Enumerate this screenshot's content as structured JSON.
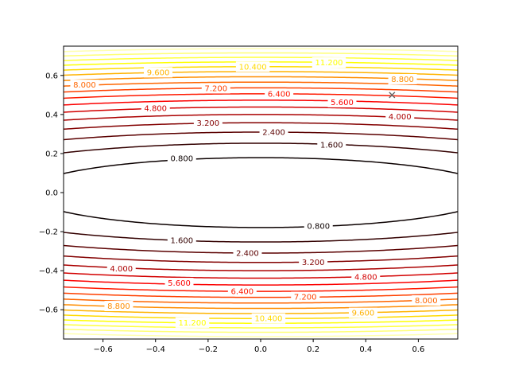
{
  "chart_data": {
    "type": "contour",
    "title": "",
    "xlabel": "",
    "ylabel": "",
    "xlim": [
      -0.75,
      0.75
    ],
    "ylim": [
      -0.75,
      0.75
    ],
    "x_ticks": [
      -0.6,
      -0.4,
      -0.2,
      0.0,
      0.2,
      0.4,
      0.6
    ],
    "x_tick_labels": [
      "−0.6",
      "−0.4",
      "−0.2",
      "0.0",
      "0.2",
      "0.4",
      "0.6"
    ],
    "y_ticks": [
      -0.6,
      -0.4,
      -0.2,
      0.0,
      0.2,
      0.4,
      0.6
    ],
    "y_tick_labels": [
      "−0.6",
      "−0.4",
      "−0.2",
      "0.0",
      "0.2",
      "0.4",
      "0.6"
    ],
    "grid": false,
    "colormap": "hot (dark red for low levels, pale yellow for high levels)",
    "surface": "f(x, y) = x^2 + 25*y^2",
    "levels": [
      0.8,
      1.6,
      2.4,
      3.2,
      4.0,
      4.8,
      5.6,
      6.4,
      7.2,
      8.0,
      8.8,
      9.6,
      10.4,
      11.2,
      12.0,
      12.8,
      13.6
    ],
    "labels": [
      {
        "text": "0.800",
        "level": 0.8,
        "x": -0.3,
        "y": 0.175
      },
      {
        "text": "0.800",
        "level": 0.8,
        "x": 0.22,
        "y": -0.172
      },
      {
        "text": "1.600",
        "level": 1.6,
        "x": 0.27,
        "y": 0.245
      },
      {
        "text": "1.600",
        "level": 1.6,
        "x": -0.3,
        "y": -0.245
      },
      {
        "text": "2.400",
        "level": 2.4,
        "x": 0.05,
        "y": 0.31
      },
      {
        "text": "2.400",
        "level": 2.4,
        "x": -0.05,
        "y": -0.31
      },
      {
        "text": "3.200",
        "level": 3.2,
        "x": -0.2,
        "y": 0.357
      },
      {
        "text": "3.200",
        "level": 3.2,
        "x": 0.2,
        "y": -0.357
      },
      {
        "text": "4.000",
        "level": 4.0,
        "x": 0.53,
        "y": 0.39
      },
      {
        "text": "4.000",
        "level": 4.0,
        "x": -0.53,
        "y": -0.39
      },
      {
        "text": "4.800",
        "level": 4.8,
        "x": -0.4,
        "y": 0.432
      },
      {
        "text": "4.800",
        "level": 4.8,
        "x": 0.4,
        "y": -0.432
      },
      {
        "text": "5.600",
        "level": 5.6,
        "x": 0.31,
        "y": 0.463
      },
      {
        "text": "5.600",
        "level": 5.6,
        "x": -0.31,
        "y": -0.463
      },
      {
        "text": "6.400",
        "level": 6.4,
        "x": 0.07,
        "y": 0.505
      },
      {
        "text": "6.400",
        "level": 6.4,
        "x": -0.07,
        "y": -0.505
      },
      {
        "text": "7.200",
        "level": 7.2,
        "x": -0.17,
        "y": 0.534
      },
      {
        "text": "7.200",
        "level": 7.2,
        "x": 0.17,
        "y": -0.534
      },
      {
        "text": "8.000",
        "level": 8.0,
        "x": -0.67,
        "y": 0.552
      },
      {
        "text": "8.000",
        "level": 8.0,
        "x": 0.63,
        "y": -0.552
      },
      {
        "text": "8.800",
        "level": 8.8,
        "x": 0.54,
        "y": 0.581
      },
      {
        "text": "8.800",
        "level": 8.8,
        "x": -0.54,
        "y": -0.581
      },
      {
        "text": "9.600",
        "level": 9.6,
        "x": -0.39,
        "y": 0.616
      },
      {
        "text": "9.600",
        "level": 9.6,
        "x": 0.39,
        "y": -0.616
      },
      {
        "text": "10.400",
        "level": 10.4,
        "x": -0.03,
        "y": 0.645
      },
      {
        "text": "10.400",
        "level": 10.4,
        "x": 0.03,
        "y": -0.645
      },
      {
        "text": "11.200",
        "level": 11.2,
        "x": 0.26,
        "y": 0.666
      },
      {
        "text": "11.200",
        "level": 11.2,
        "x": -0.26,
        "y": -0.666
      }
    ],
    "markers": [
      {
        "x": 0.5,
        "y": 0.5,
        "symbol": "x",
        "color": "#666666"
      }
    ]
  }
}
